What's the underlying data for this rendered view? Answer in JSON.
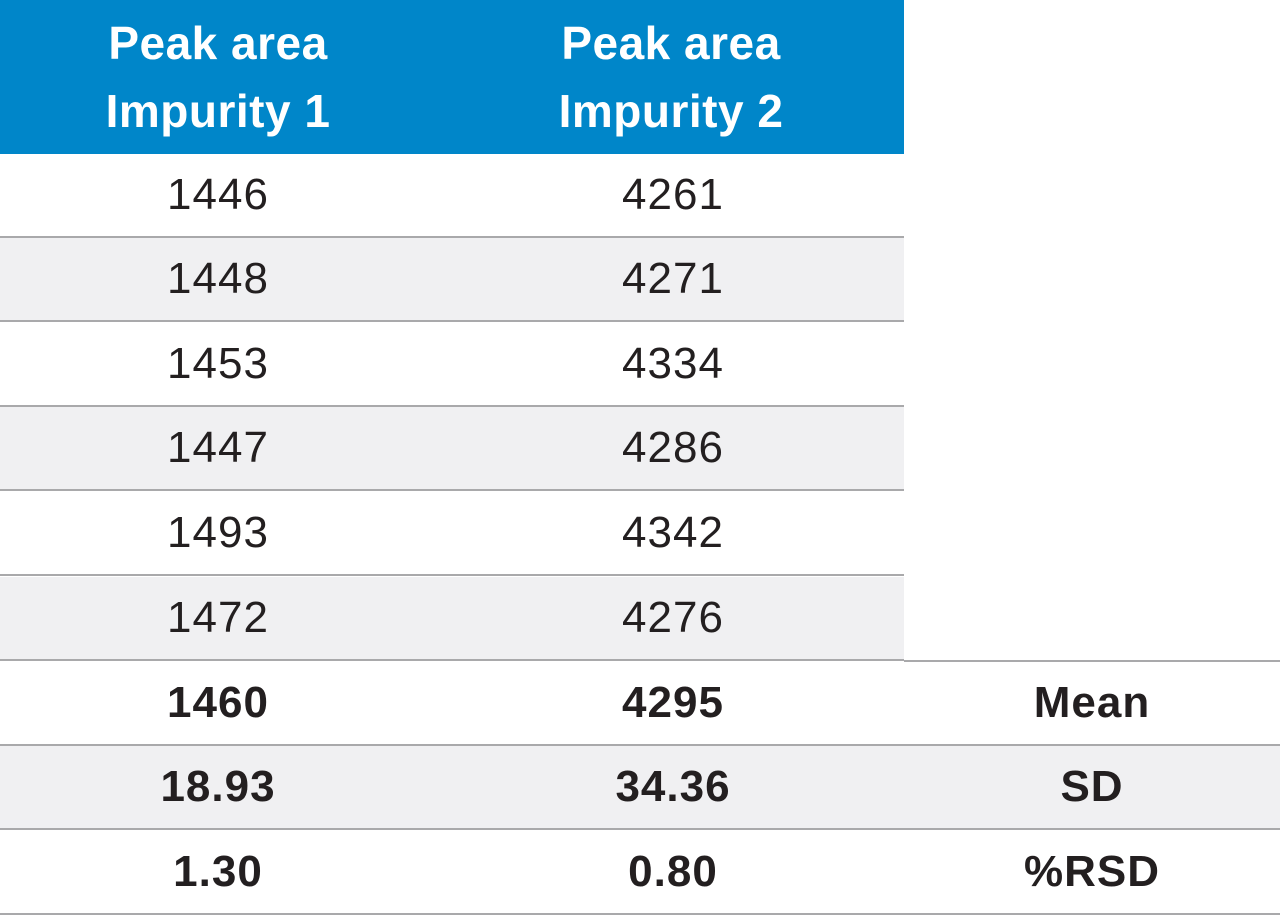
{
  "table": {
    "headers": [
      {
        "line1": "Peak area",
        "line2": "Impurity 1"
      },
      {
        "line1": "Peak area",
        "line2": "Impurity 2"
      }
    ],
    "rows": [
      {
        "impurity1": "1446",
        "impurity2": "4261"
      },
      {
        "impurity1": "1448",
        "impurity2": "4271"
      },
      {
        "impurity1": "1453",
        "impurity2": "4334"
      },
      {
        "impurity1": "1447",
        "impurity2": "4286"
      },
      {
        "impurity1": "1493",
        "impurity2": "4342"
      },
      {
        "impurity1": "1472",
        "impurity2": "4276"
      }
    ],
    "stats": [
      {
        "impurity1": "1460",
        "impurity2": "4295",
        "label": "Mean"
      },
      {
        "impurity1": "18.93",
        "impurity2": "34.36",
        "label": "SD"
      },
      {
        "impurity1": "1.30",
        "impurity2": "0.80",
        "label": "%RSD"
      }
    ]
  },
  "colors": {
    "header_bg": "#0086c9",
    "header_text": "#ffffff",
    "alt_row_bg": "#f0f0f2",
    "divider": "#a9a9ab",
    "text": "#231f20"
  }
}
